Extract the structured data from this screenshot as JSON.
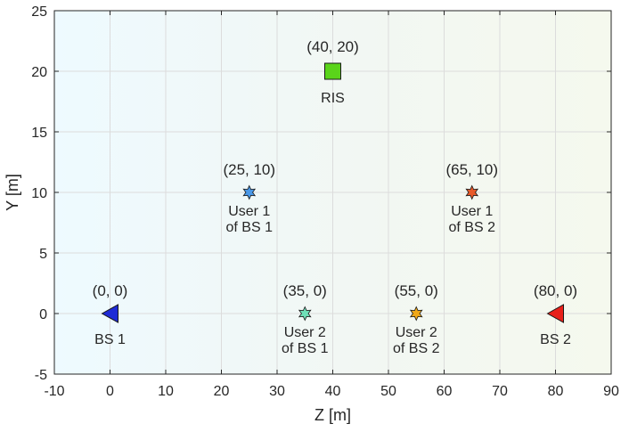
{
  "chart_data": {
    "type": "scatter",
    "xlabel": "Z [m]",
    "ylabel": "Y [m]",
    "xlim": [
      -10,
      90
    ],
    "ylim": [
      -5,
      25
    ],
    "xticks": [
      "-10",
      "0",
      "10",
      "20",
      "30",
      "40",
      "50",
      "60",
      "70",
      "80",
      "90"
    ],
    "yticks": [
      "-5",
      "0",
      "5",
      "10",
      "15",
      "20",
      "25"
    ],
    "grid": true,
    "points": [
      {
        "id": "bs1",
        "x": 0,
        "y": 0,
        "marker": "triangle-left",
        "color": "#1f2bd6",
        "coord_label": "(0, 0)",
        "label_lines": [
          "BS 1"
        ]
      },
      {
        "id": "bs2",
        "x": 80,
        "y": 0,
        "marker": "triangle-left",
        "color": "#e8201a",
        "coord_label": "(80, 0)",
        "label_lines": [
          "BS 2"
        ]
      },
      {
        "id": "ris",
        "x": 40,
        "y": 20,
        "marker": "square",
        "color": "#5ad41a",
        "coord_label": "(40, 20)",
        "label_lines": [
          "RIS"
        ]
      },
      {
        "id": "user1-bs1",
        "x": 25,
        "y": 10,
        "marker": "hexagram",
        "color": "#4a98e8",
        "coord_label": "(25, 10)",
        "label_lines": [
          "User 1",
          "of BS 1"
        ]
      },
      {
        "id": "user2-bs1",
        "x": 35,
        "y": 0,
        "marker": "hexagram",
        "color": "#6fe0b8",
        "coord_label": "(35, 0)",
        "label_lines": [
          "User 2",
          "of BS 1"
        ]
      },
      {
        "id": "user1-bs2",
        "x": 65,
        "y": 10,
        "marker": "hexagram",
        "color": "#e85a2a",
        "coord_label": "(65, 10)",
        "label_lines": [
          "User 1",
          "of BS 2"
        ]
      },
      {
        "id": "user2-bs2",
        "x": 55,
        "y": 0,
        "marker": "hexagram",
        "color": "#f0a818",
        "coord_label": "(55, 0)",
        "label_lines": [
          "User 2",
          "of BS 2"
        ]
      }
    ]
  }
}
